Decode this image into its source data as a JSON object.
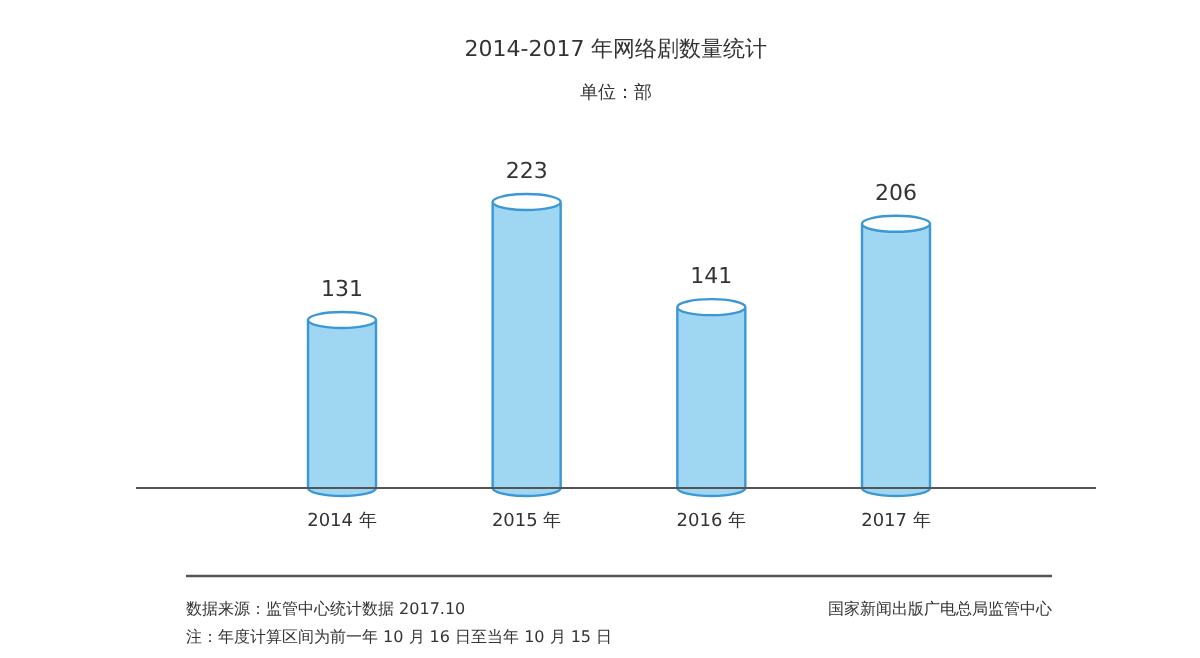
{
  "chart_data": {
    "type": "bar",
    "title": "2014-2017 年网络剧数量统计",
    "subtitle": "单位：部",
    "categories": [
      "2014 年",
      "2015 年",
      "2016 年",
      "2017 年"
    ],
    "values": [
      131,
      223,
      141,
      206
    ],
    "color": "#9fd6f2",
    "data_labels": true,
    "annotations": [
      "数据来源：监管中心统计数据 2017.10",
      "注：年度计算区间为前一年 10 月 16 日至当年 10 月 15 日",
      "国家新闻出版广电总局监管中心"
    ]
  }
}
